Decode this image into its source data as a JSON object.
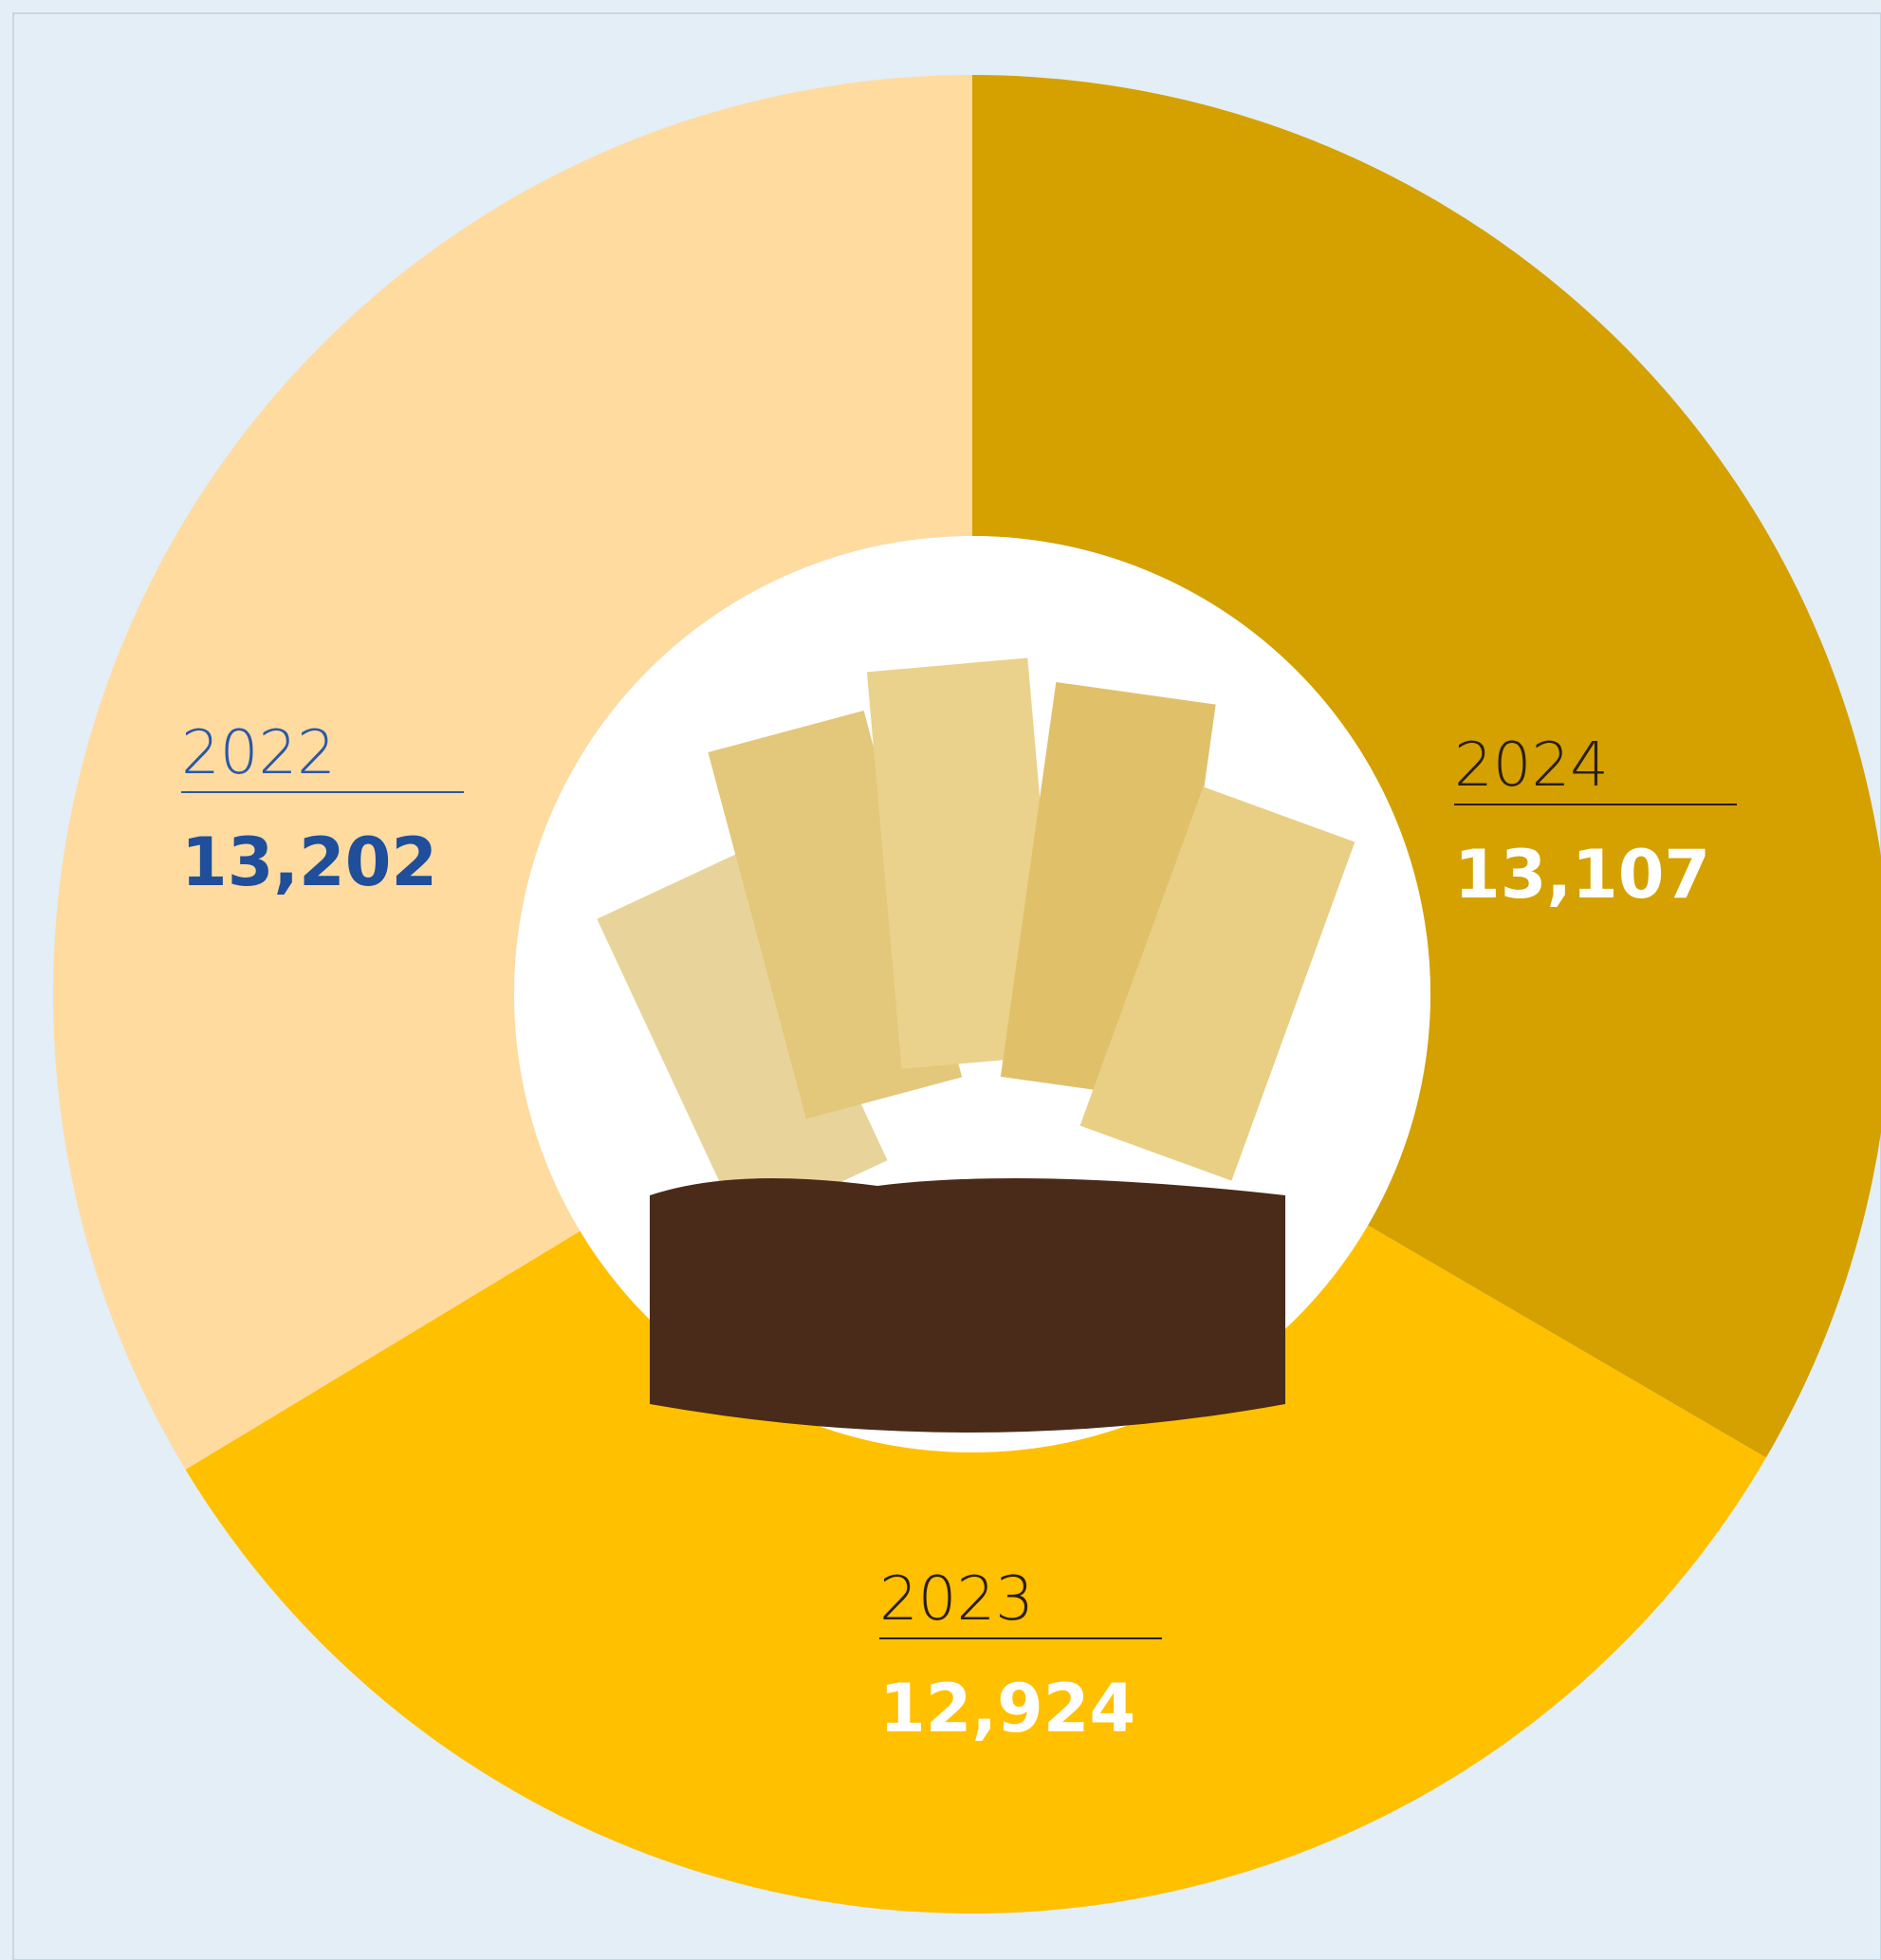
{
  "chart_data": {
    "type": "donut",
    "categories": [
      "2022",
      "2023",
      "2024"
    ],
    "values": [
      13202,
      12924,
      13107
    ],
    "value_labels": [
      "13,202",
      "12,924",
      "13,107"
    ],
    "colors": [
      "#FFDBA0",
      "#FFC000",
      "#D4A100"
    ]
  }
}
